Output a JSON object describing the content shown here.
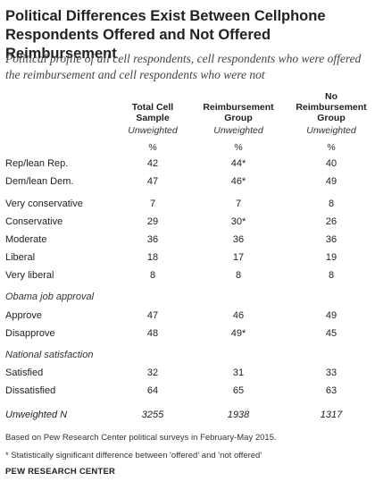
{
  "title": "Political Differences Exist Between Cellphone Respondents Offered and Not Offered Reimbursement",
  "subtitle": "Political profile of all cell respondents, cell respondents who were offered the reimbursement and cell respondents who were not",
  "columns": [
    {
      "header": "Total Cell Sample",
      "sub": "Unweighted",
      "unit": "%"
    },
    {
      "header": "Reimbursement Group",
      "sub": "Unweighted",
      "unit": "%"
    },
    {
      "header": "No Reimbursement Group",
      "sub": "Unweighted",
      "unit": "%"
    }
  ],
  "rows": {
    "rep": {
      "label": "Rep/lean Rep.",
      "v": [
        "42",
        "44*",
        "40"
      ]
    },
    "dem": {
      "label": "Dem/lean Dem.",
      "v": [
        "47",
        "46*",
        "49"
      ]
    },
    "vcons": {
      "label": "Very conservative",
      "v": [
        "7",
        "7",
        "8"
      ]
    },
    "cons": {
      "label": "Conservative",
      "v": [
        "29",
        "30*",
        "26"
      ]
    },
    "mod": {
      "label": "Moderate",
      "v": [
        "36",
        "36",
        "36"
      ]
    },
    "lib": {
      "label": "Liberal",
      "v": [
        "18",
        "17",
        "19"
      ]
    },
    "vlib": {
      "label": "Very liberal",
      "v": [
        "8",
        "8",
        "8"
      ]
    },
    "approve": {
      "label": "Approve",
      "v": [
        "47",
        "46",
        "49"
      ]
    },
    "disapprove": {
      "label": "Disapprove",
      "v": [
        "48",
        "49*",
        "45"
      ]
    },
    "satisfied": {
      "label": "Satisfied",
      "v": [
        "32",
        "31",
        "33"
      ]
    },
    "dissatisfied": {
      "label": "Dissatisfied",
      "v": [
        "64",
        "65",
        "63"
      ]
    },
    "unweighted": {
      "label": "Unweighted N",
      "v": [
        "3255",
        "1938",
        "1317"
      ]
    }
  },
  "sections": {
    "obama": "Obama job approval",
    "satisfaction": "National satisfaction"
  },
  "footnotes": {
    "based_on": "Based on Pew Research Center political surveys in February-May 2015.",
    "significance": "* Statistically significant difference between 'offered' and 'not offered'",
    "source": "PEW RESEARCH CENTER"
  }
}
